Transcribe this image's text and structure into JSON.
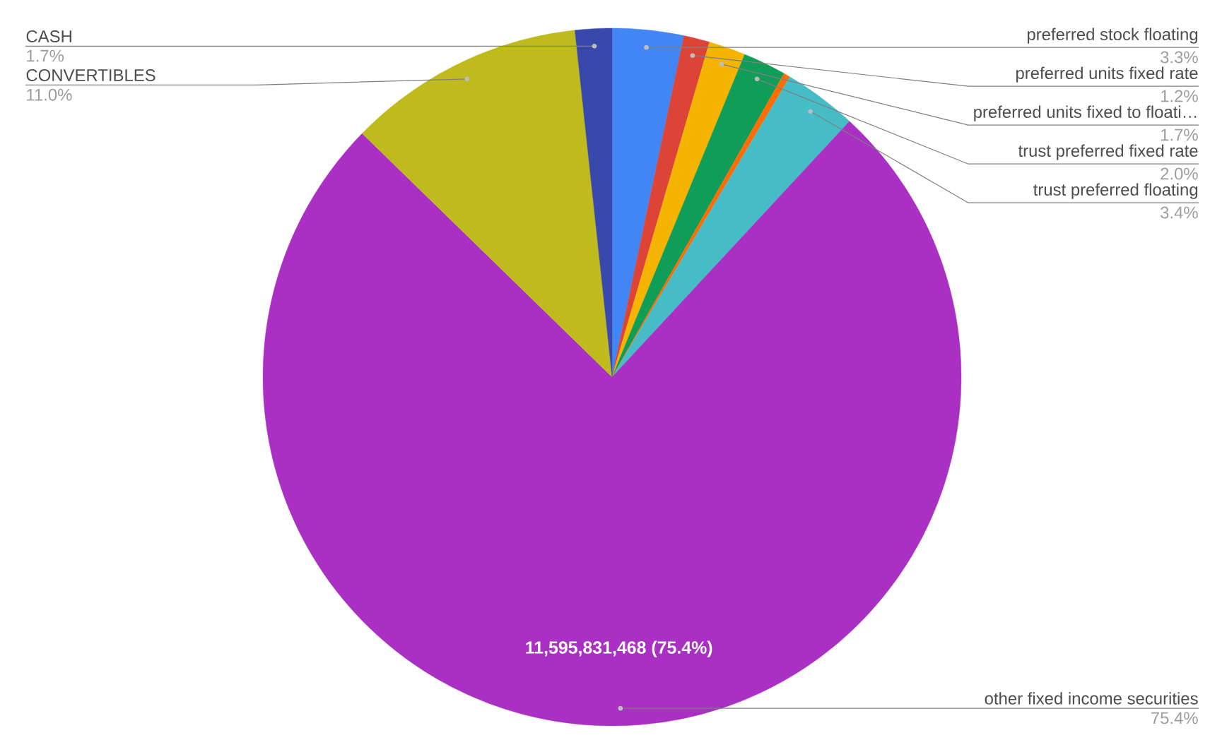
{
  "chart_data": {
    "type": "pie",
    "categories": [
      "preferred stock floating",
      "preferred units fixed rate",
      "preferred units fixed to floati…",
      "trust preferred fixed rate",
      null,
      "trust preferred floating",
      "other fixed income securities",
      "CONVERTIBLES",
      "CASH"
    ],
    "values": [
      3.3,
      1.2,
      1.7,
      2.0,
      0.3,
      3.4,
      75.4,
      11.0,
      1.7
    ],
    "colors": [
      "#4285f4",
      "#db4437",
      "#f4b400",
      "#0f9d58",
      "#ff6d00",
      "#46bdc6",
      "#a930c3",
      "#bfbb1f",
      "#3949ab"
    ],
    "value_labels": [
      "3.3%",
      "1.2%",
      "1.7%",
      "2.0%",
      null,
      "3.4%",
      "75.4%",
      "11.0%",
      "1.7%"
    ],
    "annotations": [
      "11,595,831,468 (75.4%)"
    ]
  }
}
